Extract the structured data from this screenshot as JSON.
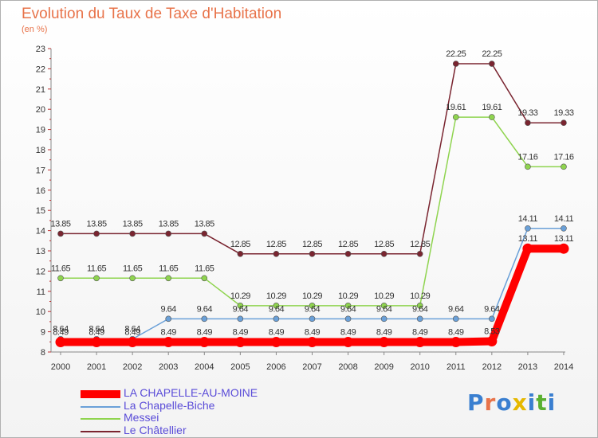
{
  "header": {
    "title": "Evolution du Taux de Taxe d'Habitation",
    "subtitle": "(en %)"
  },
  "logo": {
    "text": "Proxiti",
    "colors": [
      "#3a7fd0",
      "#e8734a",
      "#3a7fd0",
      "#e6b800",
      "#3a7fd0",
      "#5ab030",
      "#3a7fd0"
    ]
  },
  "chart_data": {
    "type": "line",
    "title": "Evolution du Taux de Taxe d'Habitation",
    "subtitle": "(en %)",
    "x": [
      "2000",
      "2001",
      "2002",
      "2003",
      "2004",
      "2005",
      "2006",
      "2007",
      "2008",
      "2009",
      "2010",
      "2011",
      "2012",
      "2013",
      "2014"
    ],
    "ylim": [
      8,
      23
    ],
    "yticks": [
      "8",
      "9",
      "10",
      "11",
      "12",
      "13",
      "14",
      "15",
      "16",
      "17",
      "18",
      "19",
      "20",
      "21",
      "22",
      "23"
    ],
    "legend_position": "bottom-left",
    "series": [
      {
        "name": "LA CHAPELLE-AU-MOINE",
        "color": "#ff0000",
        "thick": true,
        "values": [
          8.49,
          8.49,
          8.49,
          8.49,
          8.49,
          8.49,
          8.49,
          8.49,
          8.49,
          8.49,
          8.49,
          8.49,
          8.53,
          13.11,
          13.11
        ],
        "labels": [
          "8.49",
          "8.49",
          "8.49",
          "8.49",
          "8.49",
          "8.49",
          "8.49",
          "8.49",
          "8.49",
          "8.49",
          "8.49",
          "8.49",
          "8.53",
          "13.11",
          "13.11"
        ]
      },
      {
        "name": "La Chapelle-Biche",
        "color": "#6aa0d8",
        "values": [
          8.64,
          8.64,
          8.64,
          9.64,
          9.64,
          9.64,
          9.64,
          9.64,
          9.64,
          9.64,
          9.64,
          9.64,
          9.64,
          14.11,
          14.11
        ],
        "labels": [
          "8.64",
          "8.64",
          "8.64",
          "9.64",
          "9.64",
          "9.64",
          "9.64",
          "9.64",
          "9.64",
          "9.64",
          "9.64",
          "9.64",
          "9.64",
          "14.11",
          "14.11"
        ]
      },
      {
        "name": "Messei",
        "color": "#8fd44f",
        "values": [
          11.65,
          11.65,
          11.65,
          11.65,
          11.65,
          10.29,
          10.29,
          10.29,
          10.29,
          10.29,
          10.29,
          19.61,
          19.61,
          17.16,
          17.16
        ],
        "labels": [
          "11.65",
          "11.65",
          "11.65",
          "11.65",
          "11.65",
          "10.29",
          "10.29",
          "10.29",
          "10.29",
          "10.29",
          "10.29",
          "19.61",
          "19.61",
          "17.16",
          "17.16"
        ]
      },
      {
        "name": "Le Châtellier",
        "color": "#7a2530",
        "values": [
          13.85,
          13.85,
          13.85,
          13.85,
          13.85,
          12.85,
          12.85,
          12.85,
          12.85,
          12.85,
          12.85,
          22.25,
          22.25,
          19.33,
          19.33
        ],
        "labels": [
          "13.85",
          "13.85",
          "13.85",
          "13.85",
          "13.85",
          "12.85",
          "12.85",
          "12.85",
          "12.85",
          "12.85",
          "12.85",
          "22.25",
          "22.25",
          "19.33",
          "19.33"
        ]
      }
    ]
  }
}
